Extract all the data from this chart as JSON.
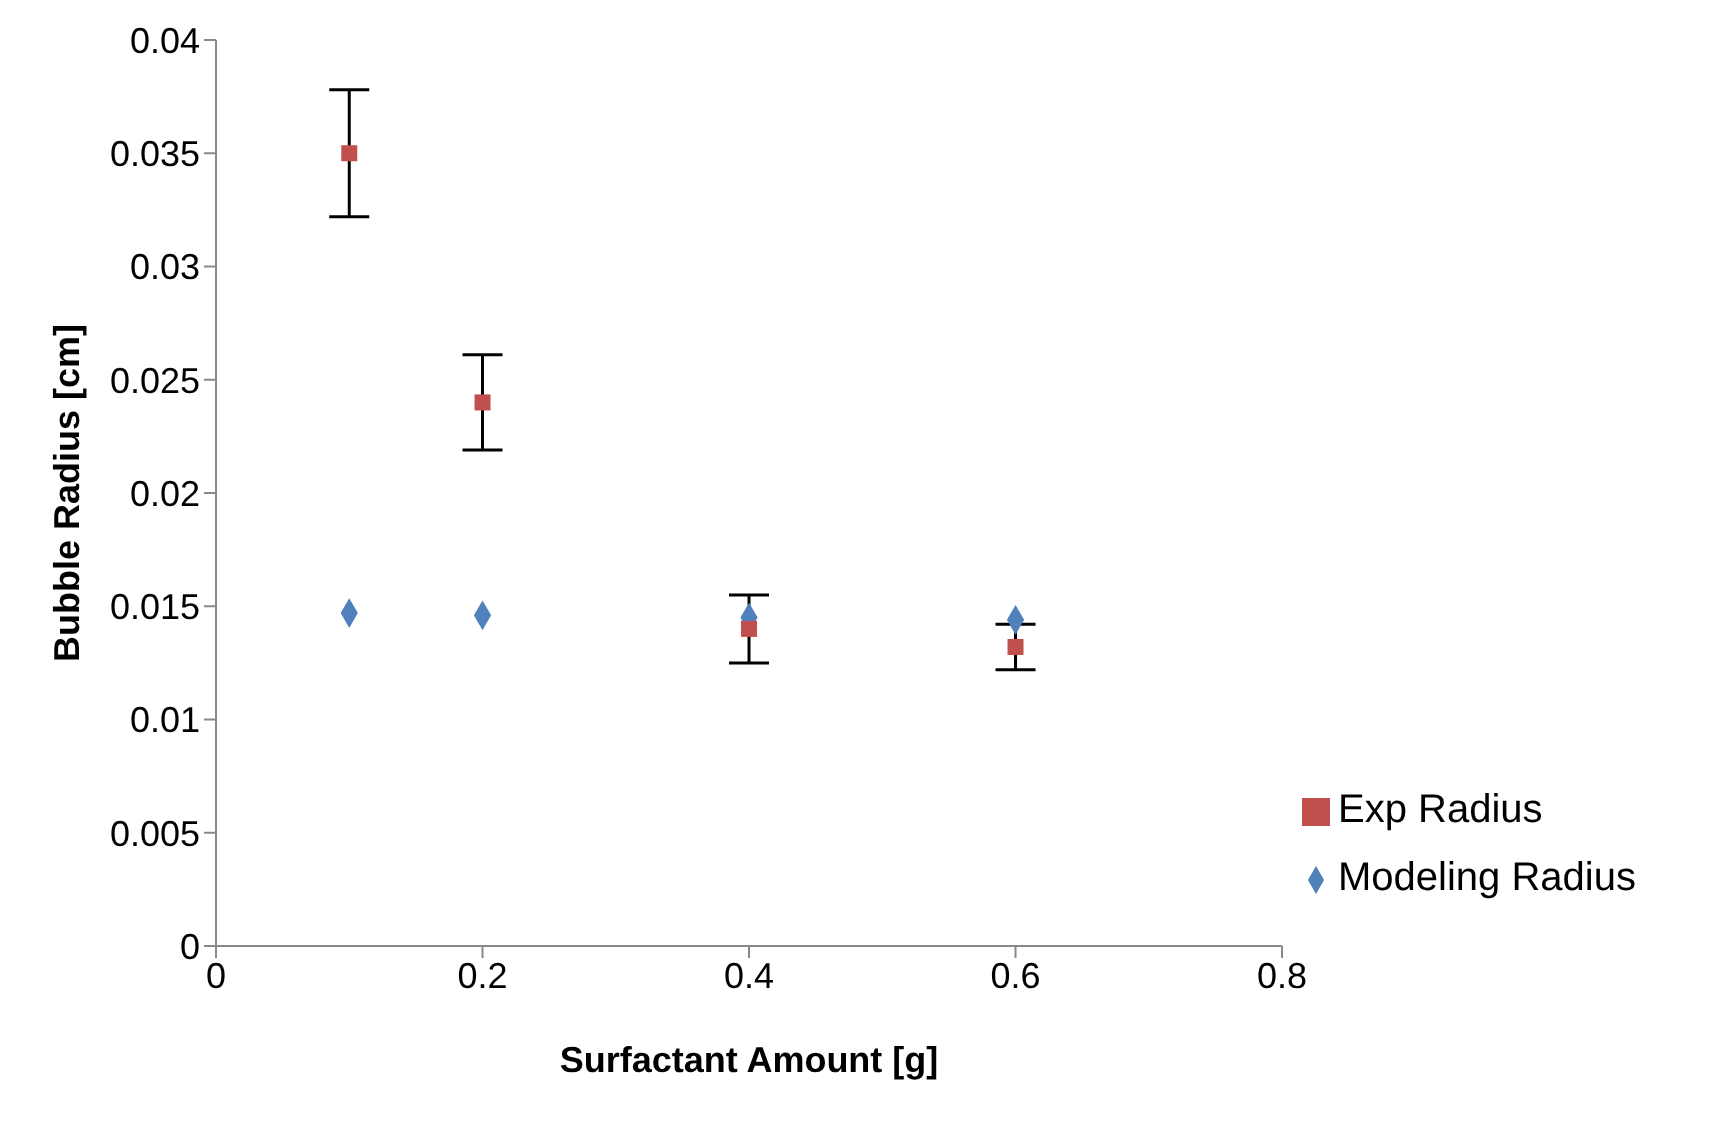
{
  "chart_data": {
    "type": "scatter",
    "xlabel": "Surfactant Amount [g]",
    "ylabel": "Bubble Radius [cm]",
    "x": [
      0.1,
      0.2,
      0.4,
      0.6
    ],
    "series": [
      {
        "name": "Modeling Radius",
        "color": "#4f81bd",
        "marker": "diamond",
        "values": [
          0.0147,
          0.0146,
          0.0145,
          0.0144
        ]
      },
      {
        "name": "Exp Radius",
        "color": "#c0504d",
        "marker": "square",
        "values": [
          0.035,
          0.024,
          0.014,
          0.0132
        ],
        "errors": [
          0.0028,
          0.0021,
          0.0015,
          0.001
        ]
      }
    ],
    "xlim": [
      0,
      0.8
    ],
    "xticks": [
      0,
      0.2,
      0.4,
      0.6,
      0.8
    ],
    "ylim": [
      0,
      0.04
    ],
    "yticks": [
      0,
      0.005,
      0.01,
      0.015,
      0.02,
      0.025,
      0.03,
      0.035,
      0.04
    ],
    "grid": false,
    "legend": "bottom right"
  }
}
